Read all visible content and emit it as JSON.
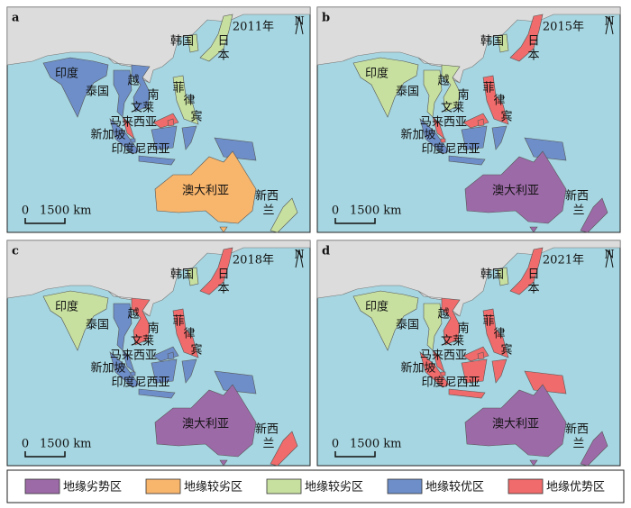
{
  "panels": [
    {
      "label": "a",
      "year": "2011年"
    },
    {
      "label": "b",
      "year": "2015年"
    },
    {
      "label": "c",
      "year": "2018年"
    },
    {
      "label": "d",
      "year": "2021年"
    }
  ],
  "north": "N",
  "scale": {
    "zero": "0",
    "length": "1500 km"
  },
  "legend": {
    "items": [
      {
        "name": "地缘劣势区",
        "color": "#9d6aa8"
      },
      {
        "name": "地缘较劣区",
        "color": "#f8b56c"
      },
      {
        "name": "地缘较劣区",
        "color": "#c7e09f"
      },
      {
        "name": "地缘较优区",
        "color": "#6d8ec8"
      },
      {
        "name": "地缘优势区",
        "color": "#f06b6b"
      }
    ]
  },
  "countries": [
    {
      "label_parts": [
        "印度"
      ],
      "class": [
        3,
        2,
        2,
        2
      ]
    },
    {
      "label_parts": [
        "泰国"
      ],
      "class": [
        3,
        2,
        3,
        2
      ]
    },
    {
      "label_parts": [
        "越",
        "南"
      ],
      "class": [
        3,
        2,
        4,
        4
      ]
    },
    {
      "label_parts": [
        "马来西亚"
      ],
      "class": [
        4,
        4,
        3,
        4
      ]
    },
    {
      "label_parts": [
        "菲",
        "律",
        "宾"
      ],
      "class": [
        2,
        4,
        4,
        4
      ]
    },
    {
      "label_parts": [
        "印度尼西亚"
      ],
      "class": [
        3,
        3,
        3,
        4
      ]
    },
    {
      "label_parts": [
        "澳大利亚"
      ],
      "class": [
        1,
        0,
        0,
        0
      ]
    },
    {
      "label_parts": [
        "新西",
        "兰"
      ],
      "class": [
        2,
        0,
        4,
        0
      ]
    },
    {
      "label_parts": [
        "日",
        "本"
      ],
      "class": [
        2,
        4,
        4,
        4
      ]
    },
    {
      "label_parts": [
        "韩国"
      ],
      "class": [
        2,
        2,
        2,
        2
      ]
    },
    {
      "label_parts": [
        "文莱"
      ],
      "class": [
        4,
        4,
        3,
        4
      ]
    },
    {
      "label_parts": [
        "新加坡"
      ],
      "class": [
        3,
        4,
        3,
        4
      ]
    }
  ]
}
